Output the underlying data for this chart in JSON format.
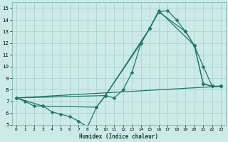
{
  "xlabel": "Humidex (Indice chaleur)",
  "bg_color": "#cceae7",
  "grid_color": "#aad4d0",
  "line_color": "#1a7a6e",
  "xlim": [
    -0.5,
    23.5
  ],
  "ylim": [
    5,
    15.5
  ],
  "xticks": [
    0,
    1,
    2,
    3,
    4,
    5,
    6,
    7,
    8,
    9,
    10,
    11,
    12,
    13,
    14,
    15,
    16,
    17,
    18,
    19,
    20,
    21,
    22,
    23
  ],
  "yticks": [
    5,
    6,
    7,
    8,
    9,
    10,
    11,
    12,
    13,
    14,
    15
  ],
  "line1_x": [
    0,
    1,
    2,
    3,
    4,
    5,
    6,
    7,
    8,
    9,
    10,
    11,
    12,
    13,
    14,
    15,
    16,
    17,
    18,
    19,
    20,
    21,
    22,
    23
  ],
  "line1_y": [
    7.3,
    7.0,
    6.6,
    6.6,
    6.1,
    5.9,
    5.7,
    5.3,
    4.8,
    6.5,
    7.5,
    7.3,
    8.0,
    9.5,
    12.0,
    13.3,
    14.7,
    14.8,
    14.0,
    13.0,
    11.8,
    8.5,
    8.3,
    8.3
  ],
  "line2_x": [
    0,
    3,
    9,
    10,
    14,
    15,
    16,
    19,
    20,
    21,
    22,
    23
  ],
  "line2_y": [
    7.3,
    6.6,
    6.5,
    7.5,
    12.0,
    13.3,
    14.7,
    13.0,
    11.8,
    8.5,
    8.3,
    8.3
  ],
  "line3_x": [
    0,
    10,
    15,
    16,
    20,
    21,
    22,
    23
  ],
  "line3_y": [
    7.3,
    7.5,
    13.3,
    14.8,
    11.8,
    10.0,
    8.3,
    8.3
  ],
  "line4_x": [
    0,
    23
  ],
  "line4_y": [
    7.3,
    8.3
  ],
  "marker_size": 2.5,
  "line_width": 0.9
}
